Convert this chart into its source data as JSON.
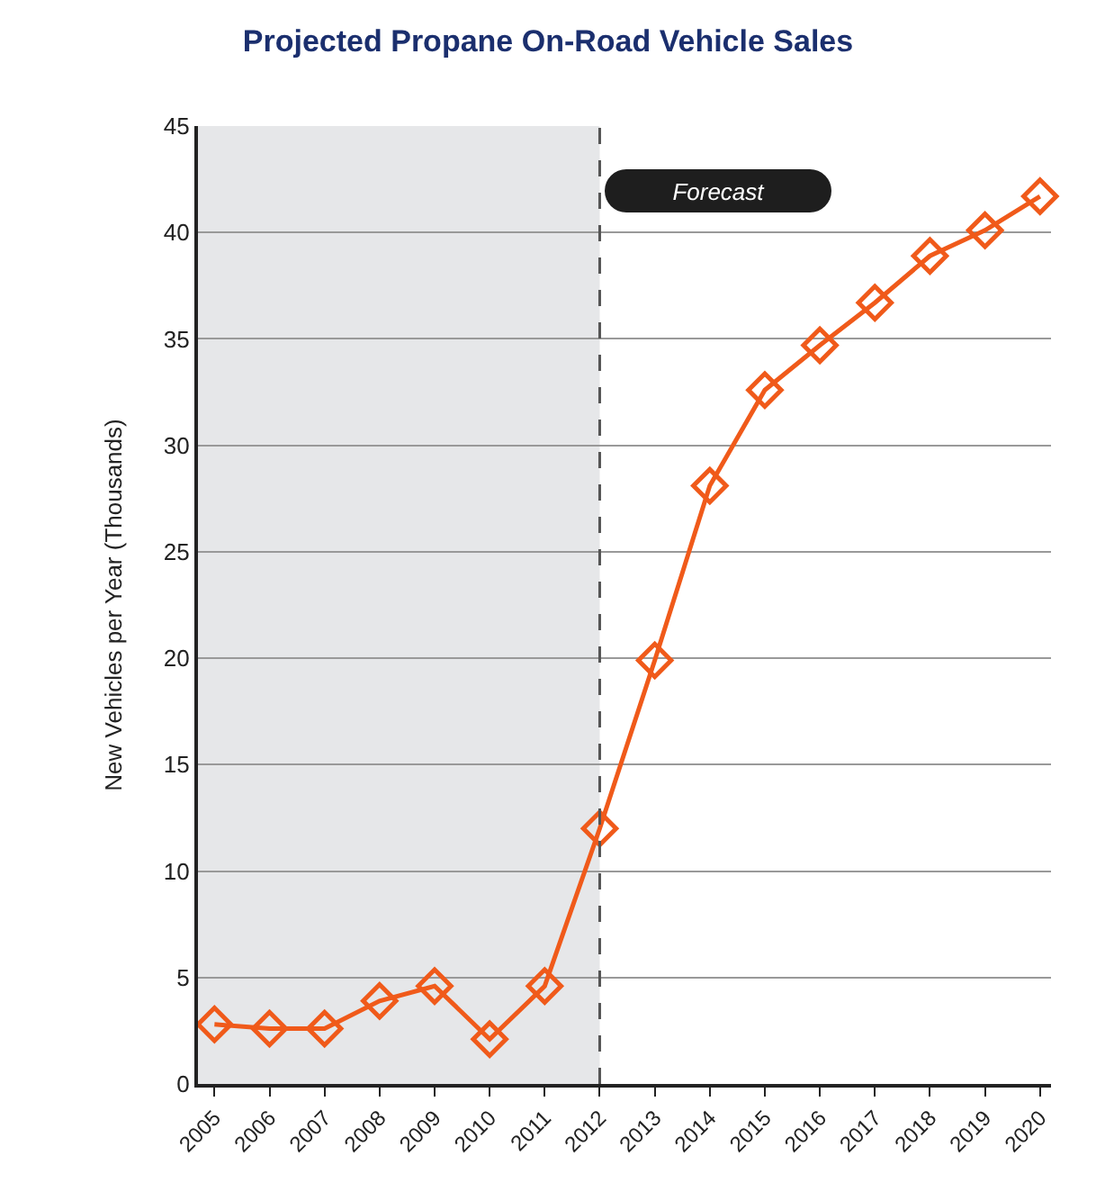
{
  "chart_data": {
    "type": "line",
    "title": "Projected Propane On-Road Vehicle Sales",
    "ylabel": "New Vehicles per Year (Thousands)",
    "x": [
      2005,
      2006,
      2007,
      2008,
      2009,
      2010,
      2011,
      2012,
      2013,
      2014,
      2015,
      2016,
      2017,
      2018,
      2019,
      2020
    ],
    "series": [
      {
        "color": "#f05a1a",
        "values": [
          2.8,
          2.6,
          2.6,
          3.9,
          4.6,
          2.1,
          4.6,
          12.0,
          19.9,
          28.1,
          32.6,
          34.7,
          36.7,
          38.9,
          40.1,
          41.7
        ]
      }
    ],
    "xlim": [
      2004.7,
      2020.2
    ],
    "xticks": [
      2005,
      2006,
      2007,
      2008,
      2009,
      2010,
      2011,
      2012,
      2013,
      2014,
      2015,
      2016,
      2017,
      2018,
      2019,
      2020
    ],
    "ylim": [
      0,
      45
    ],
    "yticks": [
      0,
      5,
      10,
      15,
      20,
      25,
      30,
      35,
      40,
      45
    ],
    "bands": [
      {
        "axis": "x",
        "from": 2004.7,
        "to": 2012,
        "color": "#e6e7e9"
      }
    ],
    "ref_lines": [
      {
        "axis": "x",
        "value": 2012,
        "color": "#555555",
        "line_style": "dashed"
      }
    ],
    "annotations": [
      "Forecast"
    ],
    "grid": "y",
    "marker": "diamond",
    "line_style": "solid"
  }
}
